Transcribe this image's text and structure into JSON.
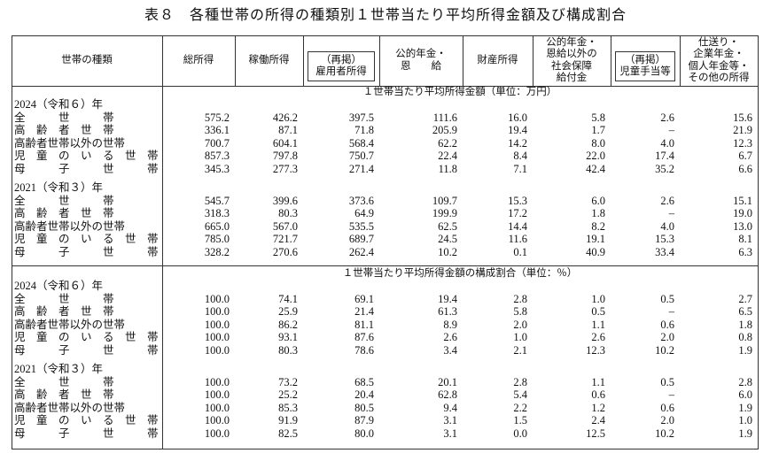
{
  "title": "表８　各種世帯の所得の種類別１世帯当たり平均所得金額及び構成割合",
  "columns": [
    [
      "世帯の種類"
    ],
    [
      "総所得"
    ],
    [
      "稼働所得"
    ],
    [
      "（再掲）",
      "雇用者所得"
    ],
    [
      "公的年金・",
      "恩　　給"
    ],
    [
      "財産所得"
    ],
    [
      "公的年金・",
      "恩給以外の",
      "社会保障",
      "給付金"
    ],
    [
      "（再掲）",
      "児童手当等"
    ],
    [
      "仕送り・",
      "企業年金・",
      "個人年金等・",
      "その他の所得"
    ]
  ],
  "sections": [
    {
      "caption": "１世帯当たり平均所得金額（単位：万円）",
      "years": [
        {
          "label": "2024（令和６）年",
          "rows": [
            {
              "label": "全　　　世　　　帯",
              "values": [
                "575.2",
                "426.2",
                "397.5",
                "111.6",
                "16.0",
                "5.8",
                "2.6",
                "15.6"
              ]
            },
            {
              "label": "高　齢　者　世　帯",
              "values": [
                "336.1",
                "87.1",
                "71.8",
                "205.9",
                "19.4",
                "1.7",
                "–",
                "21.9"
              ]
            },
            {
              "label": "高齢者世帯以外の世帯",
              "values": [
                "700.7",
                "604.1",
                "568.4",
                "62.2",
                "14.2",
                "8.0",
                "4.0",
                "12.3"
              ]
            },
            {
              "label": "児　童　の　い　る　世　帯",
              "values": [
                "857.3",
                "797.8",
                "750.7",
                "22.4",
                "8.4",
                "22.0",
                "17.4",
                "6.7"
              ]
            },
            {
              "label": "母　　　子　　　世　　　帯",
              "values": [
                "345.3",
                "277.3",
                "271.4",
                "11.8",
                "7.1",
                "42.4",
                "35.2",
                "6.6"
              ]
            }
          ]
        },
        {
          "label": "2021（令和３）年",
          "rows": [
            {
              "label": "全　　　世　　　帯",
              "values": [
                "545.7",
                "399.6",
                "373.6",
                "109.7",
                "15.3",
                "6.0",
                "2.6",
                "15.1"
              ]
            },
            {
              "label": "高　齢　者　世　帯",
              "values": [
                "318.3",
                "80.3",
                "64.9",
                "199.9",
                "17.2",
                "1.8",
                "–",
                "19.0"
              ]
            },
            {
              "label": "高齢者世帯以外の世帯",
              "values": [
                "665.0",
                "567.0",
                "535.5",
                "62.5",
                "14.4",
                "8.2",
                "4.0",
                "13.0"
              ]
            },
            {
              "label": "児　童　の　い　る　世　帯",
              "values": [
                "785.0",
                "721.7",
                "689.7",
                "24.5",
                "11.6",
                "19.1",
                "15.3",
                "8.1"
              ]
            },
            {
              "label": "母　　　子　　　世　　　帯",
              "values": [
                "328.2",
                "270.6",
                "262.4",
                "10.2",
                "0.1",
                "40.9",
                "33.4",
                "6.3"
              ]
            }
          ]
        }
      ]
    },
    {
      "caption": "１世帯当たり平均所得金額の構成割合（単位：％）",
      "years": [
        {
          "label": "2024（令和６）年",
          "rows": [
            {
              "label": "全　　　世　　　帯",
              "values": [
                "100.0",
                "74.1",
                "69.1",
                "19.4",
                "2.8",
                "1.0",
                "0.5",
                "2.7"
              ]
            },
            {
              "label": "高　齢　者　世　帯",
              "values": [
                "100.0",
                "25.9",
                "21.4",
                "61.3",
                "5.8",
                "0.5",
                "–",
                "6.5"
              ]
            },
            {
              "label": "高齢者世帯以外の世帯",
              "values": [
                "100.0",
                "86.2",
                "81.1",
                "8.9",
                "2.0",
                "1.1",
                "0.6",
                "1.8"
              ]
            },
            {
              "label": "児　童　の　い　る　世　帯",
              "values": [
                "100.0",
                "93.1",
                "87.6",
                "2.6",
                "1.0",
                "2.6",
                "2.0",
                "0.8"
              ]
            },
            {
              "label": "母　　　子　　　世　　　帯",
              "values": [
                "100.0",
                "80.3",
                "78.6",
                "3.4",
                "2.1",
                "12.3",
                "10.2",
                "1.9"
              ]
            }
          ]
        },
        {
          "label": "2021（令和３）年",
          "rows": [
            {
              "label": "全　　　世　　　帯",
              "values": [
                "100.0",
                "73.2",
                "68.5",
                "20.1",
                "2.8",
                "1.1",
                "0.5",
                "2.8"
              ]
            },
            {
              "label": "高　齢　者　世　帯",
              "values": [
                "100.0",
                "25.2",
                "20.4",
                "62.8",
                "5.4",
                "0.6",
                "–",
                "6.0"
              ]
            },
            {
              "label": "高齢者世帯以外の世帯",
              "values": [
                "100.0",
                "85.3",
                "80.5",
                "9.4",
                "2.2",
                "1.2",
                "0.6",
                "1.9"
              ]
            },
            {
              "label": "児　童　の　い　る　世　帯",
              "values": [
                "100.0",
                "91.9",
                "87.9",
                "3.1",
                "1.5",
                "2.4",
                "2.0",
                "1.0"
              ]
            },
            {
              "label": "母　　　子　　　世　　　帯",
              "values": [
                "100.0",
                "82.5",
                "80.0",
                "3.1",
                "0.0",
                "12.5",
                "10.2",
                "1.9"
              ]
            }
          ]
        }
      ]
    }
  ]
}
